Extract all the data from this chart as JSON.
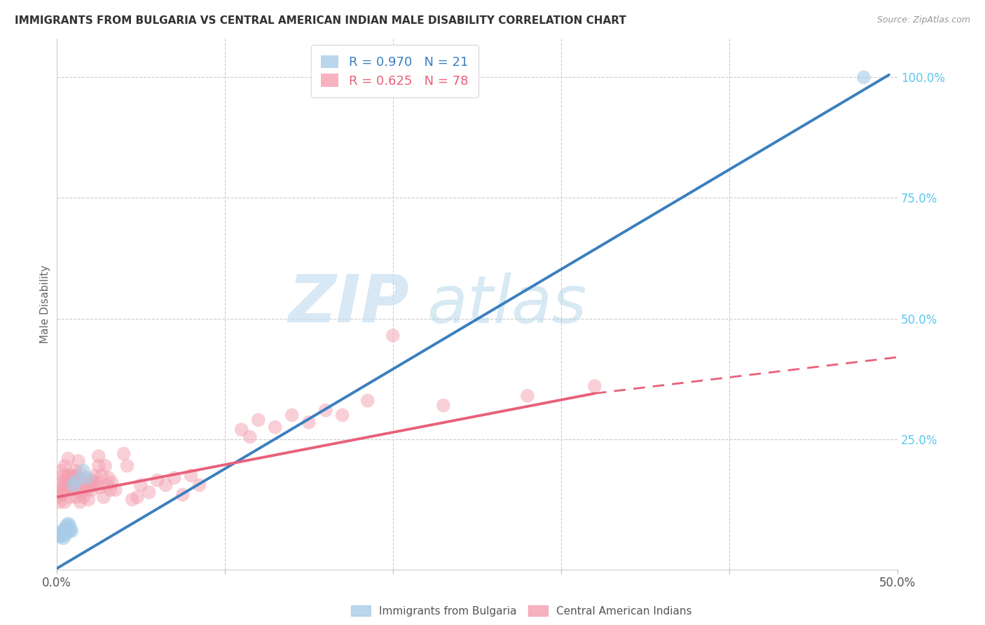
{
  "title": "IMMIGRANTS FROM BULGARIA VS CENTRAL AMERICAN INDIAN MALE DISABILITY CORRELATION CHART",
  "source": "Source: ZipAtlas.com",
  "ylabel": "Male Disability",
  "xlim": [
    0.0,
    0.5
  ],
  "ylim": [
    -0.02,
    1.08
  ],
  "xticks": [
    0.0,
    0.1,
    0.2,
    0.3,
    0.4,
    0.5
  ],
  "xticklabels": [
    "0.0%",
    "",
    "",
    "",
    "",
    "50.0%"
  ],
  "yticks_right": [
    0.25,
    0.5,
    0.75,
    1.0
  ],
  "yticklabels_right": [
    "25.0%",
    "50.0%",
    "75.0%",
    "100.0%"
  ],
  "bulgaria_color": "#a8cce8",
  "central_american_color": "#f4a0b0",
  "bulgaria_line_color": "#3a7fbf",
  "central_american_line_color": "#e8607a",
  "watermark_zip": "ZIP",
  "watermark_atlas": "atlas",
  "bulgaria_scatter": [
    [
      0.001,
      0.05
    ],
    [
      0.002,
      0.048
    ],
    [
      0.002,
      0.055
    ],
    [
      0.003,
      0.052
    ],
    [
      0.003,
      0.06
    ],
    [
      0.004,
      0.045
    ],
    [
      0.004,
      0.058
    ],
    [
      0.005,
      0.05
    ],
    [
      0.005,
      0.065
    ],
    [
      0.006,
      0.068
    ],
    [
      0.006,
      0.072
    ],
    [
      0.007,
      0.075
    ],
    [
      0.007,
      0.058
    ],
    [
      0.008,
      0.062
    ],
    [
      0.008,
      0.07
    ],
    [
      0.009,
      0.06
    ],
    [
      0.01,
      0.155
    ],
    [
      0.012,
      0.165
    ],
    [
      0.016,
      0.185
    ],
    [
      0.018,
      0.17
    ],
    [
      0.48,
      1.0
    ]
  ],
  "central_american_scatter": [
    [
      0.001,
      0.13
    ],
    [
      0.001,
      0.155
    ],
    [
      0.002,
      0.12
    ],
    [
      0.002,
      0.145
    ],
    [
      0.003,
      0.135
    ],
    [
      0.003,
      0.16
    ],
    [
      0.003,
      0.185
    ],
    [
      0.004,
      0.14
    ],
    [
      0.004,
      0.175
    ],
    [
      0.005,
      0.12
    ],
    [
      0.005,
      0.155
    ],
    [
      0.005,
      0.195
    ],
    [
      0.006,
      0.145
    ],
    [
      0.006,
      0.17
    ],
    [
      0.007,
      0.155
    ],
    [
      0.007,
      0.175
    ],
    [
      0.007,
      0.21
    ],
    [
      0.008,
      0.13
    ],
    [
      0.008,
      0.165
    ],
    [
      0.009,
      0.145
    ],
    [
      0.009,
      0.175
    ],
    [
      0.01,
      0.15
    ],
    [
      0.01,
      0.175
    ],
    [
      0.011,
      0.16
    ],
    [
      0.011,
      0.185
    ],
    [
      0.012,
      0.13
    ],
    [
      0.012,
      0.175
    ],
    [
      0.013,
      0.145
    ],
    [
      0.013,
      0.205
    ],
    [
      0.014,
      0.12
    ],
    [
      0.014,
      0.18
    ],
    [
      0.015,
      0.14
    ],
    [
      0.015,
      0.16
    ],
    [
      0.016,
      0.13
    ],
    [
      0.017,
      0.155
    ],
    [
      0.018,
      0.145
    ],
    [
      0.019,
      0.125
    ],
    [
      0.019,
      0.165
    ],
    [
      0.02,
      0.155
    ],
    [
      0.021,
      0.145
    ],
    [
      0.021,
      0.165
    ],
    [
      0.022,
      0.155
    ],
    [
      0.023,
      0.175
    ],
    [
      0.024,
      0.16
    ],
    [
      0.025,
      0.195
    ],
    [
      0.025,
      0.215
    ],
    [
      0.026,
      0.15
    ],
    [
      0.027,
      0.175
    ],
    [
      0.028,
      0.13
    ],
    [
      0.029,
      0.195
    ],
    [
      0.03,
      0.155
    ],
    [
      0.031,
      0.17
    ],
    [
      0.032,
      0.145
    ],
    [
      0.033,
      0.16
    ],
    [
      0.035,
      0.145
    ],
    [
      0.04,
      0.22
    ],
    [
      0.042,
      0.195
    ],
    [
      0.045,
      0.125
    ],
    [
      0.048,
      0.13
    ],
    [
      0.05,
      0.155
    ],
    [
      0.055,
      0.14
    ],
    [
      0.06,
      0.165
    ],
    [
      0.065,
      0.155
    ],
    [
      0.07,
      0.17
    ],
    [
      0.075,
      0.135
    ],
    [
      0.08,
      0.175
    ],
    [
      0.085,
      0.155
    ],
    [
      0.11,
      0.27
    ],
    [
      0.115,
      0.255
    ],
    [
      0.12,
      0.29
    ],
    [
      0.13,
      0.275
    ],
    [
      0.14,
      0.3
    ],
    [
      0.15,
      0.285
    ],
    [
      0.16,
      0.31
    ],
    [
      0.17,
      0.3
    ],
    [
      0.185,
      0.33
    ],
    [
      0.2,
      0.465
    ],
    [
      0.23,
      0.32
    ],
    [
      0.28,
      0.34
    ],
    [
      0.32,
      0.36
    ]
  ],
  "bulgaria_line": {
    "x0": 0.0,
    "y0": -0.018,
    "x1": 0.495,
    "y1": 1.005
  },
  "central_american_line_solid": {
    "x0": 0.0,
    "y0": 0.13,
    "x1": 0.32,
    "y1": 0.345
  },
  "central_american_line_dash": {
    "x0": 0.32,
    "y0": 0.345,
    "x1": 0.5,
    "y1": 0.42
  }
}
